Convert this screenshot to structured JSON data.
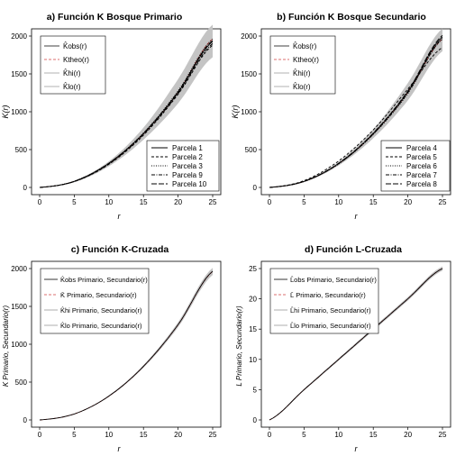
{
  "chart_data": [
    {
      "type": "line",
      "panel": "a",
      "title": "a) Función K Bosque Primario",
      "xlabel": "r",
      "ylabel": "K(r)",
      "xlim": [
        0,
        25
      ],
      "ylim": [
        0,
        2000
      ],
      "xticks": [
        "0",
        "5",
        "10",
        "15",
        "20",
        "25"
      ],
      "yticks": [
        "0",
        "500",
        "1000",
        "1500",
        "2000"
      ],
      "legend_top": [
        "K̂obs(r)",
        "Ktheo(r)",
        "K̂hi(r)",
        "K̂lo(r)"
      ],
      "legend_bottom": [
        "Parcela 1",
        "Parcela 2",
        "Parcela 3",
        "Parcela 9",
        "Parcela 10"
      ],
      "grid": false,
      "series": [
        {
          "name": "Ktheo(r)",
          "x": [
            0,
            5,
            10,
            15,
            20,
            25
          ],
          "values": [
            0,
            79,
            314,
            707,
            1257,
            1963
          ],
          "style": "red-dashed"
        },
        {
          "name": "K̂hi(r)",
          "x": [
            0,
            5,
            10,
            15,
            20,
            25
          ],
          "values": [
            0,
            90,
            345,
            790,
            1430,
            2150
          ],
          "style": "gray-band-upper"
        },
        {
          "name": "K̂lo(r)",
          "x": [
            0,
            5,
            10,
            15,
            20,
            25
          ],
          "values": [
            0,
            68,
            280,
            630,
            1110,
            1720
          ],
          "style": "gray-band-lower"
        },
        {
          "name": "Parcela 1",
          "x": [
            0,
            5,
            10,
            15,
            20,
            25
          ],
          "values": [
            0,
            80,
            318,
            712,
            1255,
            1930
          ],
          "style": "solid"
        },
        {
          "name": "Parcela 2",
          "x": [
            0,
            5,
            10,
            15,
            20,
            25
          ],
          "values": [
            0,
            77,
            305,
            690,
            1230,
            1880
          ],
          "style": "dashed"
        },
        {
          "name": "Parcela 3",
          "x": [
            0,
            5,
            10,
            15,
            20,
            25
          ],
          "values": [
            0,
            82,
            322,
            720,
            1275,
            1960
          ],
          "style": "dotted"
        },
        {
          "name": "Parcela 9",
          "x": [
            0,
            5,
            10,
            15,
            20,
            25
          ],
          "values": [
            0,
            78,
            310,
            700,
            1240,
            1900
          ],
          "style": "dashdot"
        },
        {
          "name": "Parcela 10",
          "x": [
            0,
            5,
            10,
            15,
            20,
            25
          ],
          "values": [
            0,
            81,
            320,
            715,
            1265,
            1940
          ],
          "style": "longdash"
        }
      ]
    },
    {
      "type": "line",
      "panel": "b",
      "title": "b) Función K Bosque Secundario",
      "xlabel": "r",
      "ylabel": "K(r)",
      "xlim": [
        0,
        25
      ],
      "ylim": [
        0,
        2000
      ],
      "xticks": [
        "0",
        "5",
        "10",
        "15",
        "20",
        "25"
      ],
      "yticks": [
        "0",
        "500",
        "1000",
        "1500",
        "2000"
      ],
      "legend_top": [
        "K̂obs(r)",
        "Ktheo(r)",
        "K̂hi(r)",
        "K̂lo(r)"
      ],
      "legend_bottom": [
        "Parcela 4",
        "Parcela 5",
        "Parcela 6",
        "Parcela 7",
        "Parcela 8"
      ],
      "grid": false,
      "series": [
        {
          "name": "Ktheo(r)",
          "x": [
            0,
            5,
            10,
            15,
            20,
            25
          ],
          "values": [
            0,
            79,
            314,
            707,
            1257,
            1963
          ],
          "style": "red-dashed"
        },
        {
          "name": "K̂hi(r)",
          "x": [
            0,
            5,
            10,
            15,
            20,
            25
          ],
          "values": [
            0,
            88,
            340,
            770,
            1380,
            2100
          ],
          "style": "gray-band-upper"
        },
        {
          "name": "K̂lo(r)",
          "x": [
            0,
            5,
            10,
            15,
            20,
            25
          ],
          "values": [
            0,
            70,
            290,
            650,
            1150,
            1800
          ],
          "style": "gray-band-lower"
        },
        {
          "name": "Parcela 4",
          "x": [
            0,
            5,
            10,
            15,
            20,
            25
          ],
          "values": [
            0,
            80,
            316,
            712,
            1265,
            1990
          ],
          "style": "solid"
        },
        {
          "name": "Parcela 5",
          "x": [
            0,
            5,
            10,
            15,
            20,
            25
          ],
          "values": [
            0,
            90,
            350,
            760,
            1300,
            1850
          ],
          "style": "dashed"
        },
        {
          "name": "Parcela 6",
          "x": [
            0,
            5,
            10,
            15,
            20,
            25
          ],
          "values": [
            0,
            78,
            310,
            700,
            1240,
            1960
          ],
          "style": "dotted"
        },
        {
          "name": "Parcela 7",
          "x": [
            0,
            5,
            10,
            15,
            20,
            25
          ],
          "values": [
            0,
            79,
            312,
            705,
            1250,
            1970
          ],
          "style": "dashdot"
        },
        {
          "name": "Parcela 8",
          "x": [
            0,
            5,
            10,
            15,
            20,
            25
          ],
          "values": [
            0,
            81,
            320,
            718,
            1275,
            2010
          ],
          "style": "longdash"
        }
      ]
    },
    {
      "type": "line",
      "panel": "c",
      "title": "c) Función K-Cruzada",
      "xlabel": "r",
      "ylabel": "K Primario, Secundario(r)",
      "xlim": [
        0,
        25
      ],
      "ylim": [
        0,
        2000
      ],
      "xticks": [
        "0",
        "5",
        "10",
        "15",
        "20",
        "25"
      ],
      "yticks": [
        "0",
        "500",
        "1000",
        "1500",
        "2000"
      ],
      "legend_top": [
        "K̂obs Primario, Secundario(r)",
        "K̄ Primario, Secundario(r)",
        "K̂hi Primario, Secundario(r)",
        "K̂lo Primario, Secundario(r)"
      ],
      "grid": false,
      "series": [
        {
          "name": "K̄ Primario, Secundario(r)",
          "x": [
            0,
            5,
            10,
            15,
            20,
            25
          ],
          "values": [
            0,
            79,
            314,
            707,
            1257,
            1963
          ],
          "style": "red-dashed"
        },
        {
          "name": "K̂hi Primario, Secundario(r)",
          "x": [
            0,
            5,
            10,
            15,
            20,
            25
          ],
          "values": [
            0,
            82,
            323,
            725,
            1290,
            2010
          ],
          "style": "gray-band-upper"
        },
        {
          "name": "K̂lo Primario, Secundario(r)",
          "x": [
            0,
            5,
            10,
            15,
            20,
            25
          ],
          "values": [
            0,
            76,
            305,
            690,
            1225,
            1915
          ],
          "style": "gray-band-lower"
        },
        {
          "name": "K̂obs Primario, Secundario(r)",
          "x": [
            0,
            5,
            10,
            15,
            20,
            25
          ],
          "values": [
            0,
            79,
            315,
            708,
            1258,
            1965
          ],
          "style": "solid"
        }
      ]
    },
    {
      "type": "line",
      "panel": "d",
      "title": "d) Función L-Cruzada",
      "xlabel": "r",
      "ylabel": "L Primario, Secundario(r)",
      "xlim": [
        0,
        25
      ],
      "ylim": [
        0,
        25
      ],
      "xticks": [
        "0",
        "5",
        "10",
        "15",
        "20",
        "25"
      ],
      "yticks": [
        "0",
        "5",
        "10",
        "15",
        "20",
        "25"
      ],
      "legend_top": [
        "L̂obs Primario, Secundario(r)",
        "L̄ Primario, Secundario(r)",
        "L̂hi Primario, Secundario(r)",
        "L̂lo Primario, Secundario(r)"
      ],
      "grid": false,
      "series": [
        {
          "name": "L̄ Primario, Secundario(r)",
          "x": [
            0,
            5,
            10,
            15,
            20,
            25
          ],
          "values": [
            0,
            5,
            10,
            15,
            20,
            25
          ],
          "style": "red-dashed"
        },
        {
          "name": "L̂hi Primario, Secundario(r)",
          "x": [
            0,
            5,
            10,
            15,
            20,
            25
          ],
          "values": [
            0,
            5.15,
            10.2,
            15.25,
            20.3,
            25.35
          ],
          "style": "gray-band-upper"
        },
        {
          "name": "L̂lo Primario, Secundario(r)",
          "x": [
            0,
            5,
            10,
            15,
            20,
            25
          ],
          "values": [
            0,
            4.85,
            9.8,
            14.75,
            19.7,
            24.65
          ],
          "style": "gray-band-lower"
        },
        {
          "name": "L̂obs Primario, Secundario(r)",
          "x": [
            0,
            5,
            10,
            15,
            20,
            25
          ],
          "values": [
            0,
            5,
            10,
            15,
            20,
            25
          ],
          "style": "solid"
        }
      ]
    }
  ]
}
